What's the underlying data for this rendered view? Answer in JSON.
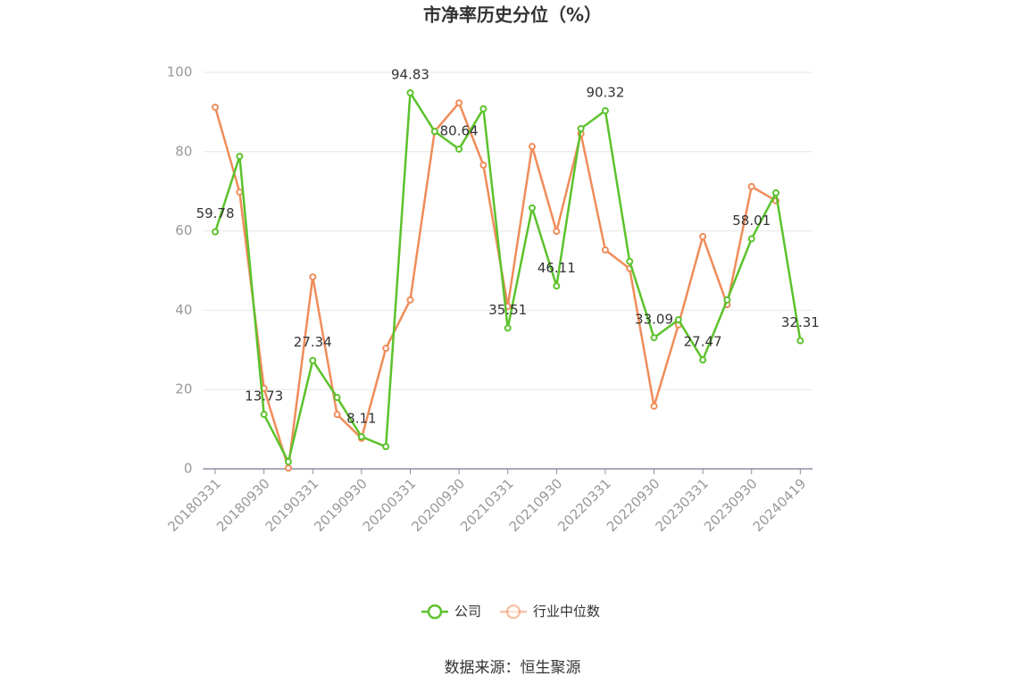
{
  "chart_data": {
    "type": "line",
    "title": "市净率历史分位（%）",
    "source": "数据来源：恒生聚源",
    "categories": [
      "20180331",
      null,
      "20180930",
      null,
      "20190331",
      null,
      "20190930",
      null,
      "20200331",
      null,
      "20200930",
      null,
      "20210331",
      null,
      "20210930",
      null,
      "20220331",
      null,
      "20220930",
      null,
      "20230331",
      null,
      "20230930",
      null,
      "20240419"
    ],
    "series": [
      {
        "name": "公司",
        "color": "#5cc22c",
        "values": [
          59.78,
          78.8,
          13.73,
          1.8,
          27.34,
          18.0,
          8.11,
          5.6,
          94.83,
          85.1,
          80.64,
          90.8,
          35.51,
          65.8,
          46.11,
          85.8,
          90.32,
          52.3,
          33.09,
          37.6,
          27.47,
          42.6,
          58.01,
          69.6,
          32.31
        ],
        "value_labels": [
          "59.78",
          null,
          "13.73",
          null,
          "27.34",
          null,
          "8.11",
          null,
          "94.83",
          null,
          "80.64",
          null,
          "35.51",
          null,
          "46.11",
          null,
          "90.32",
          null,
          "33.09",
          null,
          "27.47",
          null,
          "58.01",
          null,
          "32.31"
        ]
      },
      {
        "name": "行业中位数",
        "color": "#f08c5a",
        "values": [
          91.2,
          69.8,
          20.3,
          0.2,
          48.4,
          13.7,
          7.7,
          30.4,
          42.6,
          85.1,
          92.3,
          76.6,
          41.0,
          81.3,
          59.9,
          84.5,
          55.2,
          50.5,
          15.8,
          36.3,
          58.6,
          41.4,
          71.2,
          67.6,
          null
        ]
      }
    ],
    "ylim": [
      0,
      100
    ],
    "yticks": [
      0,
      20,
      40,
      60,
      80,
      100
    ],
    "grid": true
  }
}
